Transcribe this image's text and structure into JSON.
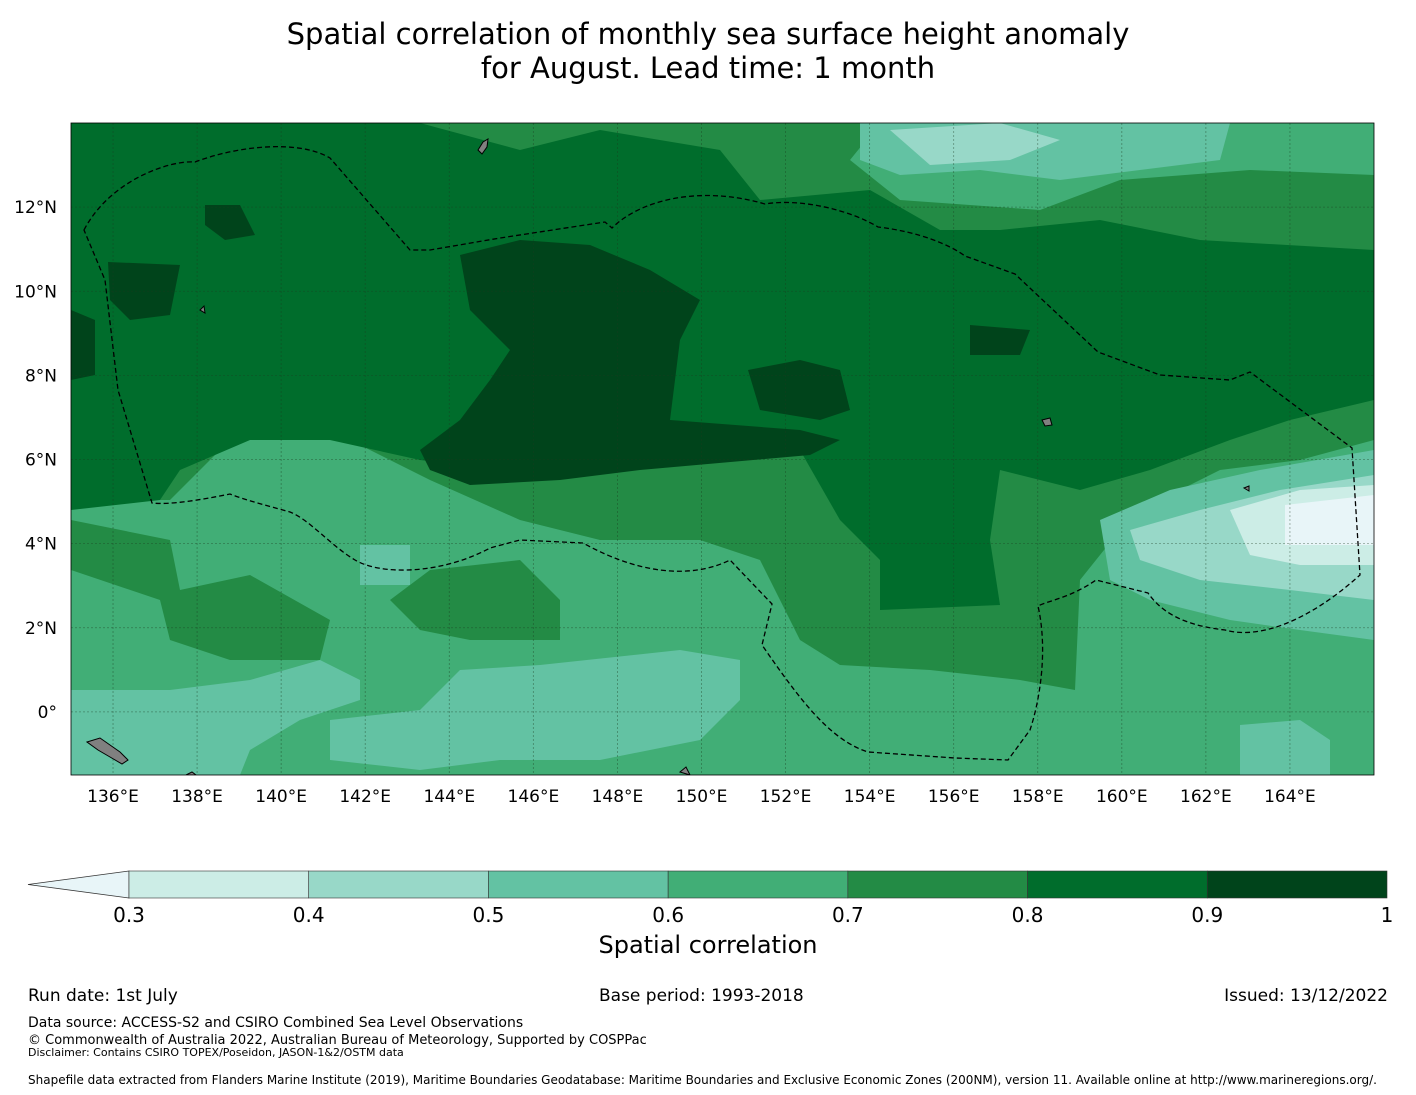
{
  "title": {
    "line1": "Spatial correlation of monthly sea surface height anomaly",
    "line2": "for August. Lead time: 1 month"
  },
  "map": {
    "lon_range": [
      135,
      166
    ],
    "lat_range": [
      -1.5,
      14
    ],
    "lon_ticks": [
      "136°E",
      "138°E",
      "140°E",
      "142°E",
      "144°E",
      "146°E",
      "148°E",
      "150°E",
      "152°E",
      "154°E",
      "156°E",
      "158°E",
      "160°E",
      "162°E",
      "164°E"
    ],
    "lat_ticks": [
      "12°N",
      "10°N",
      "8°N",
      "6°N",
      "4°N",
      "2°N",
      "0°"
    ],
    "land_color": "#808080"
  },
  "colorbar": {
    "label": "Spatial correlation",
    "ticks": [
      "0.3",
      "0.4",
      "0.5",
      "0.6",
      "0.7",
      "0.8",
      "0.9",
      "1"
    ],
    "colors": [
      "#e8f5f8",
      "#ccede6",
      "#98d8c8",
      "#63c2a3",
      "#41ae76",
      "#238b45",
      "#006d2c",
      "#00441b"
    ]
  },
  "footer": {
    "run_date": "Run date: 1st July",
    "base_period": "Base period: 1993-2018",
    "issued": "Issued: 13/12/2022",
    "data_source": "Data source: ACCESS-S2 and CSIRO Combined Sea Level Observations",
    "copyright": "© Commonwealth of Australia 2022, Australian Bureau of Meteorology, Supported by COSPPac",
    "disclaimer": "Disclaimer: Contains CSIRO TOPEX/Poseidon, JASON-1&2/OSTM data",
    "shapefile": "Shapefile data extracted from Flanders Marine Institute (2019), Maritime Boundaries Geodatabase: Maritime Boundaries and Exclusive Economic Zones (200NM), version 11. Available online at http://www.marineregions.org/."
  }
}
